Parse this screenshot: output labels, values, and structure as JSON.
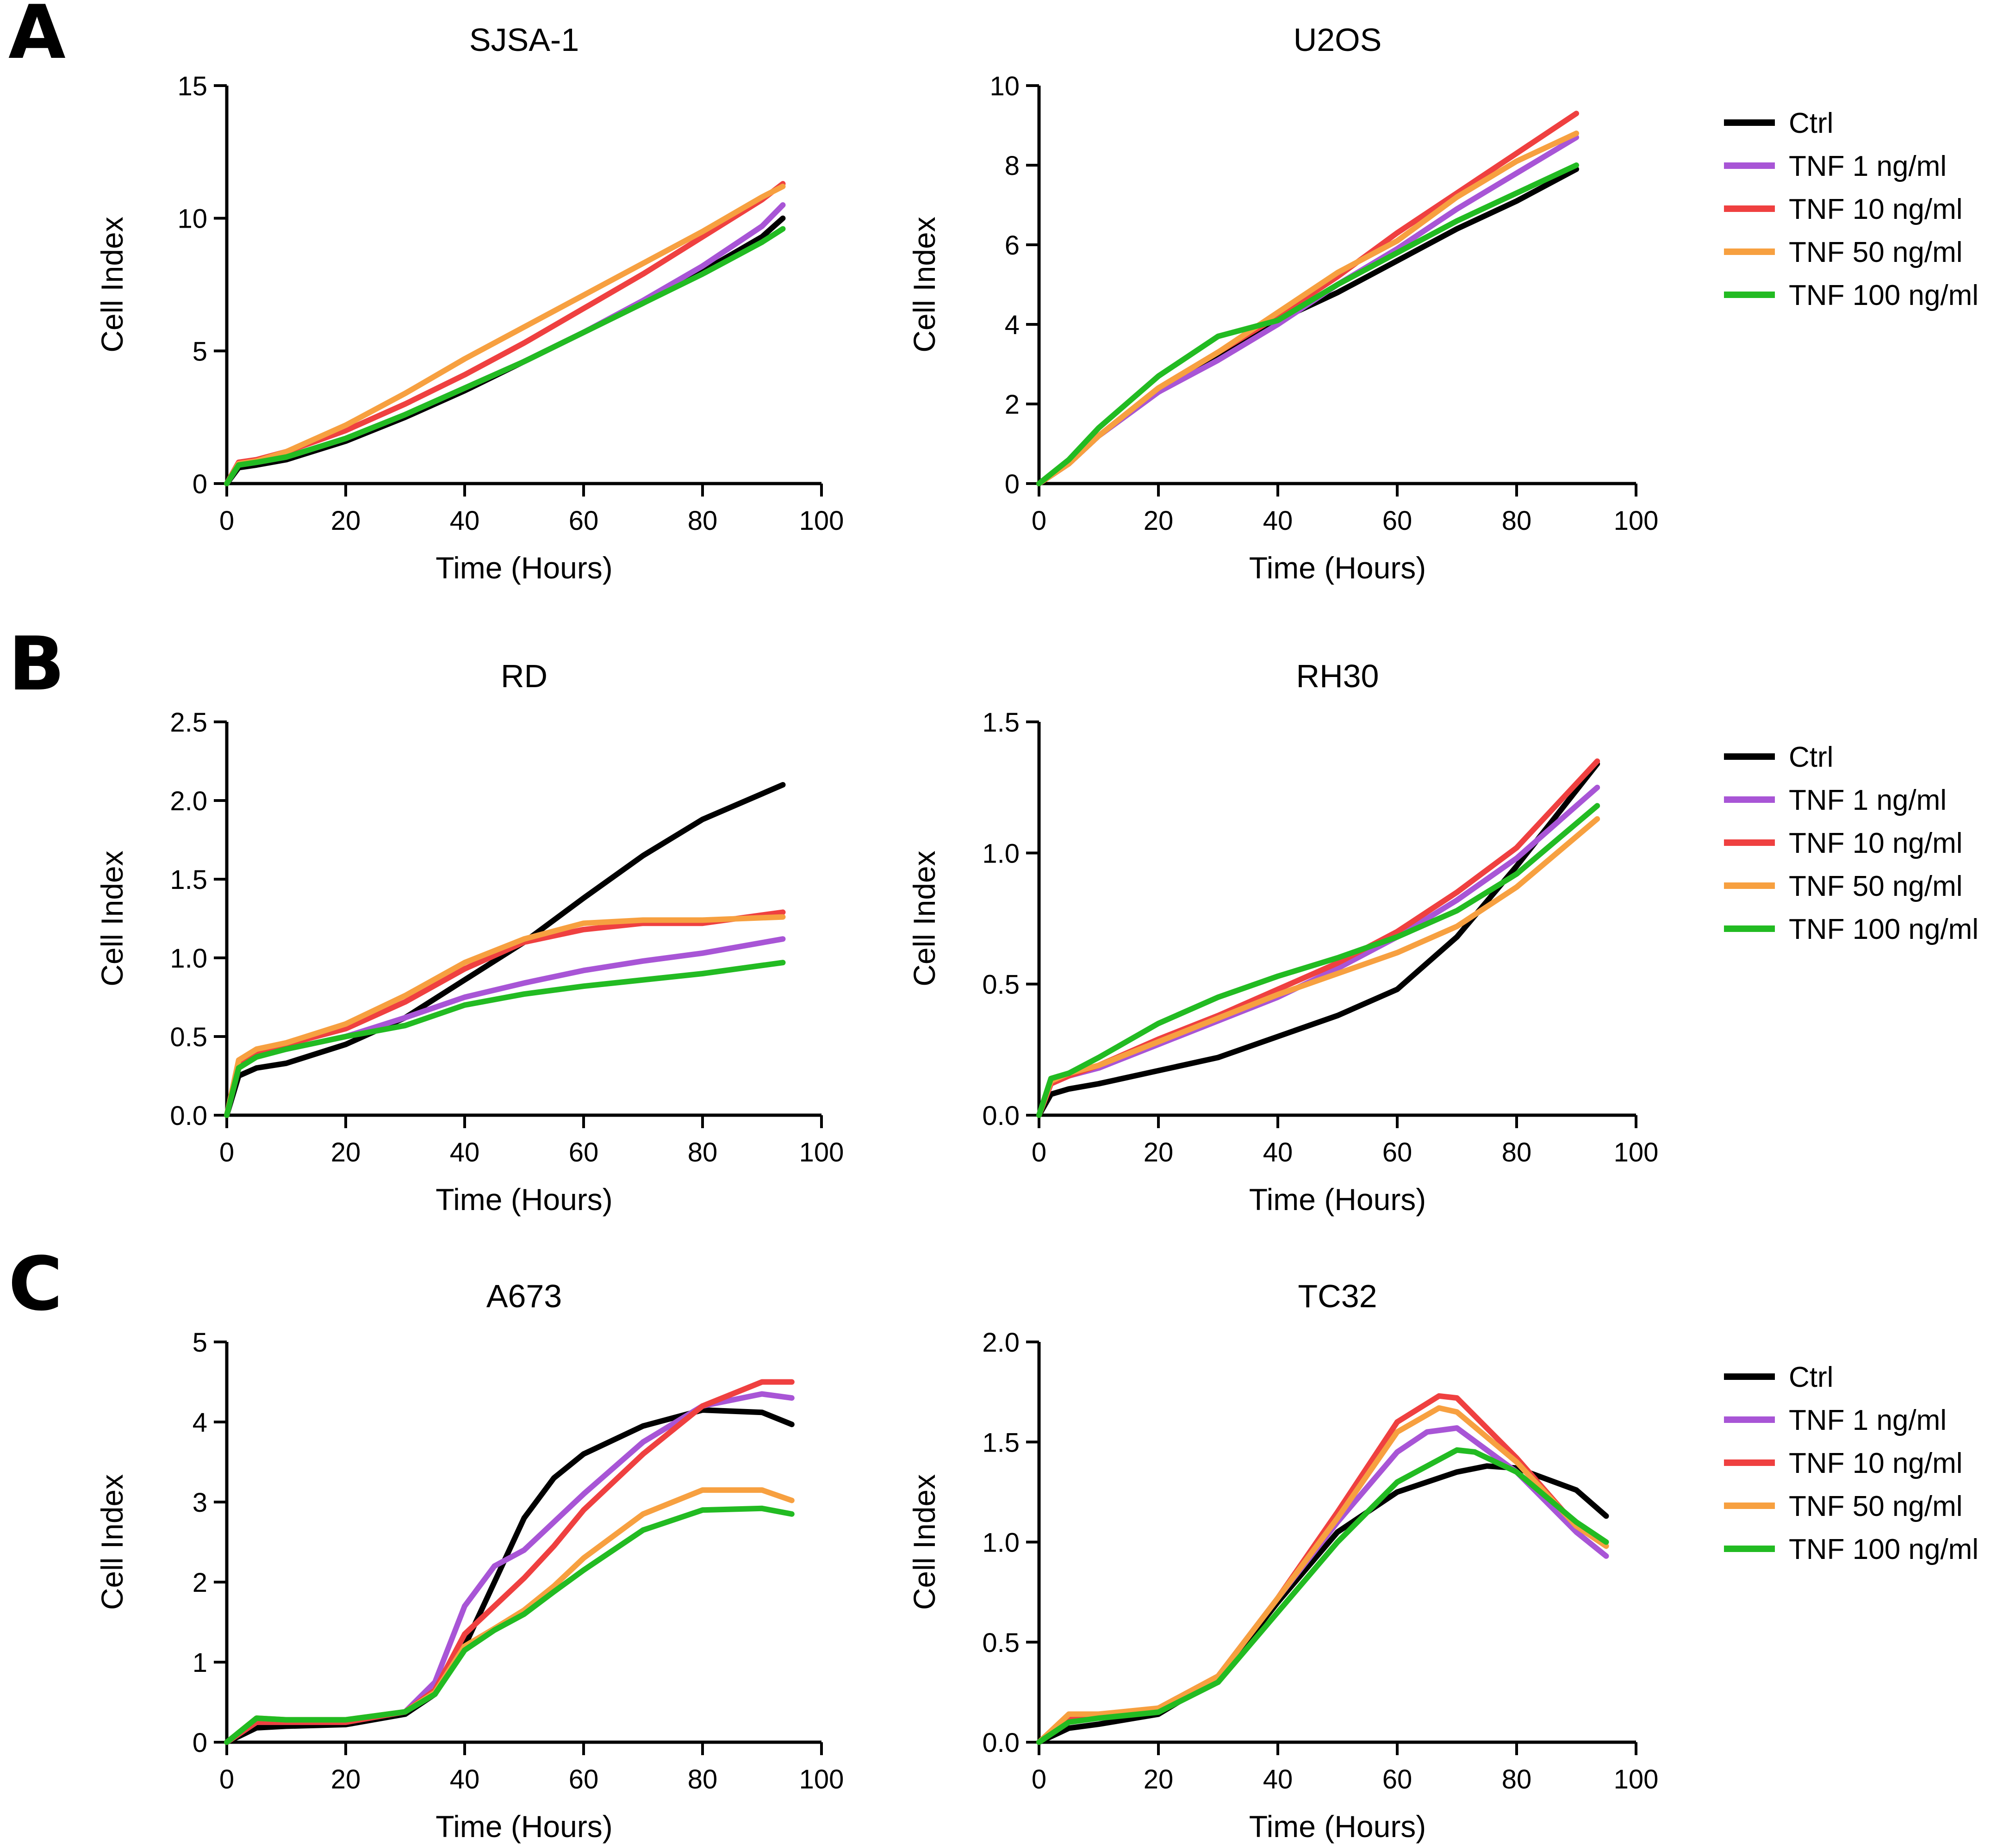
{
  "panel_labels": [
    "A",
    "B",
    "C"
  ],
  "colors": {
    "Ctrl": "#000000",
    "TNF 1 ng/ml": "#a855d6",
    "TNF 10 ng/ml": "#ef4040",
    "TNF 50 ng/ml": "#f7a040",
    "TNF 100 ng/ml": "#22bb22"
  },
  "legend_entries": [
    "Ctrl",
    "TNF 1 ng/ml",
    "TNF 10 ng/ml",
    "TNF 50 ng/ml",
    "TNF 100 ng/ml"
  ],
  "chart_data": [
    {
      "type": "line",
      "panel": "A",
      "title": "SJSA-1",
      "xlabel": "Time (Hours)",
      "ylabel": "Cell Index",
      "xlim": [
        0,
        100
      ],
      "ylim": [
        0,
        15
      ],
      "xticks": [
        0,
        20,
        40,
        60,
        80,
        100
      ],
      "yticks": [
        0,
        5,
        10,
        15
      ],
      "ytick_labels": [
        "0",
        "5",
        "10",
        "15"
      ],
      "series": [
        {
          "name": "Ctrl",
          "x": [
            0,
            2,
            5,
            10,
            20,
            30,
            40,
            50,
            60,
            70,
            80,
            90,
            93.5
          ],
          "y": [
            0,
            0.6,
            0.7,
            0.9,
            1.6,
            2.5,
            3.5,
            4.6,
            5.7,
            6.8,
            8.0,
            9.3,
            10.0
          ]
        },
        {
          "name": "TNF 1 ng/ml",
          "x": [
            0,
            2,
            5,
            10,
            20,
            30,
            40,
            50,
            60,
            70,
            80,
            90,
            93.5
          ],
          "y": [
            0,
            0.7,
            0.8,
            1.0,
            1.7,
            2.6,
            3.6,
            4.6,
            5.7,
            6.9,
            8.2,
            9.7,
            10.5
          ]
        },
        {
          "name": "TNF 10 ng/ml",
          "x": [
            0,
            2,
            5,
            10,
            20,
            30,
            40,
            50,
            60,
            70,
            80,
            90,
            93.5
          ],
          "y": [
            0,
            0.8,
            0.9,
            1.2,
            2.0,
            3.0,
            4.1,
            5.3,
            6.6,
            7.9,
            9.3,
            10.7,
            11.3
          ]
        },
        {
          "name": "TNF 50 ng/ml",
          "x": [
            0,
            2,
            5,
            10,
            20,
            30,
            40,
            50,
            60,
            70,
            80,
            90,
            93.5
          ],
          "y": [
            0,
            0.75,
            0.85,
            1.2,
            2.2,
            3.4,
            4.7,
            5.9,
            7.1,
            8.3,
            9.5,
            10.8,
            11.2
          ]
        },
        {
          "name": "TNF 100 ng/ml",
          "x": [
            0,
            2,
            5,
            10,
            20,
            30,
            40,
            50,
            60,
            70,
            80,
            90,
            93.5
          ],
          "y": [
            0,
            0.7,
            0.8,
            1.0,
            1.7,
            2.6,
            3.6,
            4.6,
            5.7,
            6.8,
            7.9,
            9.1,
            9.6
          ]
        }
      ]
    },
    {
      "type": "line",
      "panel": "A",
      "title": "U2OS",
      "xlabel": "Time (Hours)",
      "ylabel": "Cell Index",
      "xlim": [
        0,
        100
      ],
      "ylim": [
        0,
        10
      ],
      "xticks": [
        0,
        20,
        40,
        60,
        80,
        100
      ],
      "yticks": [
        0,
        2,
        4,
        6,
        8,
        10
      ],
      "ytick_labels": [
        "0",
        "2",
        "4",
        "6",
        "8",
        "10"
      ],
      "legend": true,
      "series": [
        {
          "name": "Ctrl",
          "x": [
            0,
            5,
            10,
            20,
            30,
            40,
            50,
            60,
            70,
            80,
            90
          ],
          "y": [
            0,
            0.5,
            1.2,
            2.3,
            3.2,
            4.1,
            4.8,
            5.6,
            6.4,
            7.1,
            7.9
          ]
        },
        {
          "name": "TNF 1 ng/ml",
          "x": [
            0,
            5,
            10,
            20,
            30,
            40,
            50,
            60,
            70,
            80,
            90
          ],
          "y": [
            0,
            0.5,
            1.2,
            2.3,
            3.1,
            4.0,
            5.0,
            5.9,
            6.9,
            7.8,
            8.7
          ]
        },
        {
          "name": "TNF 10 ng/ml",
          "x": [
            0,
            5,
            10,
            20,
            30,
            40,
            50,
            60,
            70,
            80,
            90
          ],
          "y": [
            0,
            0.5,
            1.2,
            2.4,
            3.3,
            4.2,
            5.2,
            6.3,
            7.3,
            8.3,
            9.3
          ]
        },
        {
          "name": "TNF 50 ng/ml",
          "x": [
            0,
            5,
            10,
            20,
            30,
            40,
            50,
            60,
            70,
            80,
            90
          ],
          "y": [
            0,
            0.5,
            1.2,
            2.4,
            3.3,
            4.3,
            5.3,
            6.1,
            7.2,
            8.1,
            8.8
          ]
        },
        {
          "name": "TNF 100 ng/ml",
          "x": [
            0,
            5,
            10,
            20,
            30,
            40,
            50,
            60,
            70,
            80,
            90
          ],
          "y": [
            0,
            0.6,
            1.4,
            2.7,
            3.7,
            4.1,
            5.0,
            5.8,
            6.6,
            7.3,
            8.0
          ]
        }
      ]
    },
    {
      "type": "line",
      "panel": "B",
      "title": "RD",
      "xlabel": "Time (Hours)",
      "ylabel": "Cell Index",
      "xlim": [
        0,
        100
      ],
      "ylim": [
        0,
        2.5
      ],
      "xticks": [
        0,
        20,
        40,
        60,
        80,
        100
      ],
      "yticks": [
        0,
        0.5,
        1.0,
        1.5,
        2.0,
        2.5
      ],
      "ytick_labels": [
        "0.0",
        "0.5",
        "1.0",
        "1.5",
        "2.0",
        "2.5"
      ],
      "series": [
        {
          "name": "Ctrl",
          "x": [
            0,
            2,
            5,
            10,
            20,
            30,
            40,
            50,
            60,
            70,
            80,
            93.5
          ],
          "y": [
            0,
            0.25,
            0.3,
            0.33,
            0.45,
            0.62,
            0.86,
            1.1,
            1.38,
            1.65,
            1.88,
            2.1
          ]
        },
        {
          "name": "TNF 1 ng/ml",
          "x": [
            0,
            2,
            5,
            10,
            20,
            30,
            40,
            50,
            60,
            70,
            80,
            93.5
          ],
          "y": [
            0,
            0.3,
            0.38,
            0.42,
            0.5,
            0.62,
            0.75,
            0.84,
            0.92,
            0.98,
            1.03,
            1.12
          ]
        },
        {
          "name": "TNF 10 ng/ml",
          "x": [
            0,
            2,
            5,
            10,
            20,
            30,
            40,
            50,
            60,
            70,
            80,
            93.5
          ],
          "y": [
            0,
            0.32,
            0.4,
            0.45,
            0.55,
            0.72,
            0.93,
            1.1,
            1.18,
            1.22,
            1.22,
            1.29
          ]
        },
        {
          "name": "TNF 50 ng/ml",
          "x": [
            0,
            2,
            5,
            10,
            20,
            30,
            40,
            50,
            60,
            70,
            80,
            93.5
          ],
          "y": [
            0,
            0.35,
            0.42,
            0.46,
            0.58,
            0.76,
            0.97,
            1.12,
            1.22,
            1.24,
            1.24,
            1.26
          ]
        },
        {
          "name": "TNF 100 ng/ml",
          "x": [
            0,
            2,
            5,
            10,
            20,
            30,
            40,
            50,
            60,
            70,
            80,
            93.5
          ],
          "y": [
            0,
            0.3,
            0.37,
            0.42,
            0.5,
            0.57,
            0.7,
            0.77,
            0.82,
            0.86,
            0.9,
            0.97
          ]
        }
      ]
    },
    {
      "type": "line",
      "panel": "B",
      "title": "RH30",
      "xlabel": "Time (Hours)",
      "ylabel": "Cell Index",
      "xlim": [
        0,
        100
      ],
      "ylim": [
        0,
        1.5
      ],
      "xticks": [
        0,
        20,
        40,
        60,
        80,
        100
      ],
      "yticks": [
        0,
        0.5,
        1.0,
        1.5
      ],
      "ytick_labels": [
        "0.0",
        "0.5",
        "1.0",
        "1.5"
      ],
      "legend": true,
      "series": [
        {
          "name": "Ctrl",
          "x": [
            0,
            2,
            5,
            10,
            20,
            30,
            40,
            50,
            60,
            70,
            80,
            93.5
          ],
          "y": [
            0,
            0.08,
            0.1,
            0.12,
            0.17,
            0.22,
            0.3,
            0.38,
            0.48,
            0.68,
            0.95,
            1.34
          ]
        },
        {
          "name": "TNF 1 ng/ml",
          "x": [
            0,
            2,
            5,
            10,
            20,
            30,
            40,
            50,
            60,
            70,
            80,
            93.5
          ],
          "y": [
            0,
            0.12,
            0.15,
            0.18,
            0.27,
            0.36,
            0.45,
            0.56,
            0.68,
            0.82,
            0.98,
            1.25
          ]
        },
        {
          "name": "TNF 10 ng/ml",
          "x": [
            0,
            2,
            5,
            10,
            20,
            30,
            40,
            50,
            60,
            70,
            80,
            93.5
          ],
          "y": [
            0,
            0.12,
            0.15,
            0.19,
            0.29,
            0.38,
            0.48,
            0.58,
            0.7,
            0.85,
            1.02,
            1.35
          ]
        },
        {
          "name": "TNF 50 ng/ml",
          "x": [
            0,
            2,
            5,
            10,
            20,
            30,
            40,
            50,
            60,
            70,
            80,
            93.5
          ],
          "y": [
            0,
            0.13,
            0.16,
            0.19,
            0.28,
            0.37,
            0.46,
            0.54,
            0.62,
            0.72,
            0.87,
            1.13
          ]
        },
        {
          "name": "TNF 100 ng/ml",
          "x": [
            0,
            2,
            5,
            10,
            20,
            30,
            40,
            50,
            60,
            70,
            80,
            93.5
          ],
          "y": [
            0,
            0.14,
            0.16,
            0.22,
            0.35,
            0.45,
            0.53,
            0.6,
            0.68,
            0.78,
            0.92,
            1.18
          ]
        }
      ]
    },
    {
      "type": "line",
      "panel": "C",
      "title": "A673",
      "xlabel": "Time (Hours)",
      "ylabel": "Cell Index",
      "xlim": [
        0,
        100
      ],
      "ylim": [
        0,
        5
      ],
      "xticks": [
        0,
        20,
        40,
        60,
        80,
        100
      ],
      "yticks": [
        0,
        1,
        2,
        3,
        4,
        5
      ],
      "ytick_labels": [
        "0",
        "1",
        "2",
        "3",
        "4",
        "5"
      ],
      "series": [
        {
          "name": "Ctrl",
          "x": [
            0,
            5,
            10,
            20,
            30,
            35,
            40,
            45,
            50,
            55,
            60,
            70,
            80,
            90,
            95
          ],
          "y": [
            0,
            0.18,
            0.2,
            0.22,
            0.35,
            0.6,
            1.2,
            2.0,
            2.8,
            3.3,
            3.6,
            3.95,
            4.15,
            4.12,
            3.97
          ]
        },
        {
          "name": "TNF 1 ng/ml",
          "x": [
            0,
            5,
            10,
            20,
            30,
            35,
            40,
            45,
            50,
            55,
            60,
            70,
            80,
            90,
            95
          ],
          "y": [
            0,
            0.25,
            0.25,
            0.25,
            0.38,
            0.75,
            1.7,
            2.2,
            2.4,
            2.75,
            3.1,
            3.75,
            4.2,
            4.35,
            4.3
          ]
        },
        {
          "name": "TNF 10 ng/ml",
          "x": [
            0,
            5,
            10,
            20,
            30,
            35,
            40,
            45,
            50,
            55,
            60,
            70,
            80,
            90,
            95
          ],
          "y": [
            0,
            0.25,
            0.25,
            0.25,
            0.38,
            0.65,
            1.35,
            1.7,
            2.05,
            2.45,
            2.9,
            3.6,
            4.2,
            4.5,
            4.5
          ]
        },
        {
          "name": "TNF 50 ng/ml",
          "x": [
            0,
            5,
            10,
            20,
            30,
            35,
            40,
            45,
            50,
            55,
            60,
            70,
            80,
            90,
            95
          ],
          "y": [
            0,
            0.3,
            0.28,
            0.28,
            0.38,
            0.62,
            1.2,
            1.42,
            1.65,
            1.95,
            2.3,
            2.85,
            3.15,
            3.15,
            3.02
          ]
        },
        {
          "name": "TNF 100 ng/ml",
          "x": [
            0,
            5,
            10,
            20,
            30,
            35,
            40,
            45,
            50,
            55,
            60,
            70,
            80,
            90,
            95
          ],
          "y": [
            0,
            0.3,
            0.28,
            0.28,
            0.38,
            0.6,
            1.15,
            1.4,
            1.6,
            1.88,
            2.15,
            2.65,
            2.9,
            2.92,
            2.85
          ]
        }
      ]
    },
    {
      "type": "line",
      "panel": "C",
      "title": "TC32",
      "xlabel": "Time (Hours)",
      "ylabel": "Cell Index",
      "xlim": [
        0,
        100
      ],
      "ylim": [
        0,
        2.0
      ],
      "xticks": [
        0,
        20,
        40,
        60,
        80,
        100
      ],
      "yticks": [
        0,
        0.5,
        1.0,
        1.5,
        2.0
      ],
      "ytick_labels": [
        "0.0",
        "0.5",
        "1.0",
        "1.5",
        "2.0"
      ],
      "legend": true,
      "series": [
        {
          "name": "Ctrl",
          "x": [
            0,
            5,
            10,
            20,
            30,
            40,
            50,
            60,
            70,
            75,
            80,
            90,
            95
          ],
          "y": [
            0,
            0.07,
            0.09,
            0.14,
            0.32,
            0.7,
            1.05,
            1.25,
            1.35,
            1.38,
            1.37,
            1.26,
            1.13
          ]
        },
        {
          "name": "TNF 1 ng/ml",
          "x": [
            0,
            5,
            10,
            20,
            30,
            40,
            50,
            60,
            65,
            70,
            80,
            90,
            95
          ],
          "y": [
            0,
            0.12,
            0.13,
            0.16,
            0.33,
            0.72,
            1.1,
            1.45,
            1.55,
            1.57,
            1.35,
            1.05,
            0.93
          ]
        },
        {
          "name": "TNF 10 ng/ml",
          "x": [
            0,
            5,
            10,
            20,
            30,
            40,
            50,
            60,
            67,
            70,
            80,
            90,
            95
          ],
          "y": [
            0,
            0.12,
            0.13,
            0.17,
            0.33,
            0.72,
            1.15,
            1.6,
            1.73,
            1.72,
            1.42,
            1.08,
            0.98
          ]
        },
        {
          "name": "TNF 50 ng/ml",
          "x": [
            0,
            5,
            10,
            20,
            30,
            40,
            50,
            60,
            67,
            70,
            80,
            90,
            95
          ],
          "y": [
            0,
            0.14,
            0.14,
            0.17,
            0.33,
            0.72,
            1.12,
            1.55,
            1.67,
            1.65,
            1.4,
            1.08,
            0.98
          ]
        },
        {
          "name": "TNF 100 ng/ml",
          "x": [
            0,
            5,
            10,
            20,
            30,
            40,
            50,
            60,
            70,
            73,
            80,
            90,
            95
          ],
          "y": [
            0,
            0.1,
            0.12,
            0.15,
            0.3,
            0.65,
            1.0,
            1.3,
            1.46,
            1.45,
            1.35,
            1.1,
            1.0
          ]
        }
      ]
    }
  ]
}
